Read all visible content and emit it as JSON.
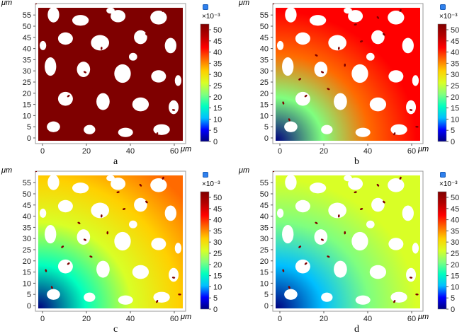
{
  "figure": {
    "panels": [
      {
        "id": "a",
        "caption": "a",
        "y_unit": "μm",
        "x_unit": "μm",
        "cb_exponent": "×10⁻³",
        "fill_mode": "flat"
      },
      {
        "id": "b",
        "caption": "b",
        "y_unit": "μm",
        "x_unit": "μm",
        "cb_exponent": "×10⁻³",
        "fill_mode": "gradient-b"
      },
      {
        "id": "c",
        "caption": "c",
        "y_unit": "μm",
        "x_unit": "μm",
        "cb_exponent": "×10⁻³",
        "fill_mode": "gradient-c"
      },
      {
        "id": "d",
        "caption": "d",
        "y_unit": "μm",
        "x_unit": "μm",
        "cb_exponent": "×10⁻³",
        "fill_mode": "gradient-d"
      }
    ],
    "x_ticks": [
      "0",
      "20",
      "40",
      "60"
    ],
    "y_ticks": [
      "0",
      "5",
      "10",
      "15",
      "20",
      "25",
      "30",
      "35",
      "40",
      "45",
      "50",
      "55"
    ],
    "colorbar_ticks": [
      "0",
      "5",
      "10",
      "15",
      "20",
      "25",
      "30",
      "35",
      "40",
      "45",
      "50"
    ],
    "colors": {
      "high": "#7f0000",
      "colormap": [
        "#00007f",
        "#0000ff",
        "#00bfff",
        "#00ffbf",
        "#7fff7f",
        "#d9ff26",
        "#ffd000",
        "#ff6a00",
        "#ff0000",
        "#b50000",
        "#7f0000"
      ]
    }
  }
}
